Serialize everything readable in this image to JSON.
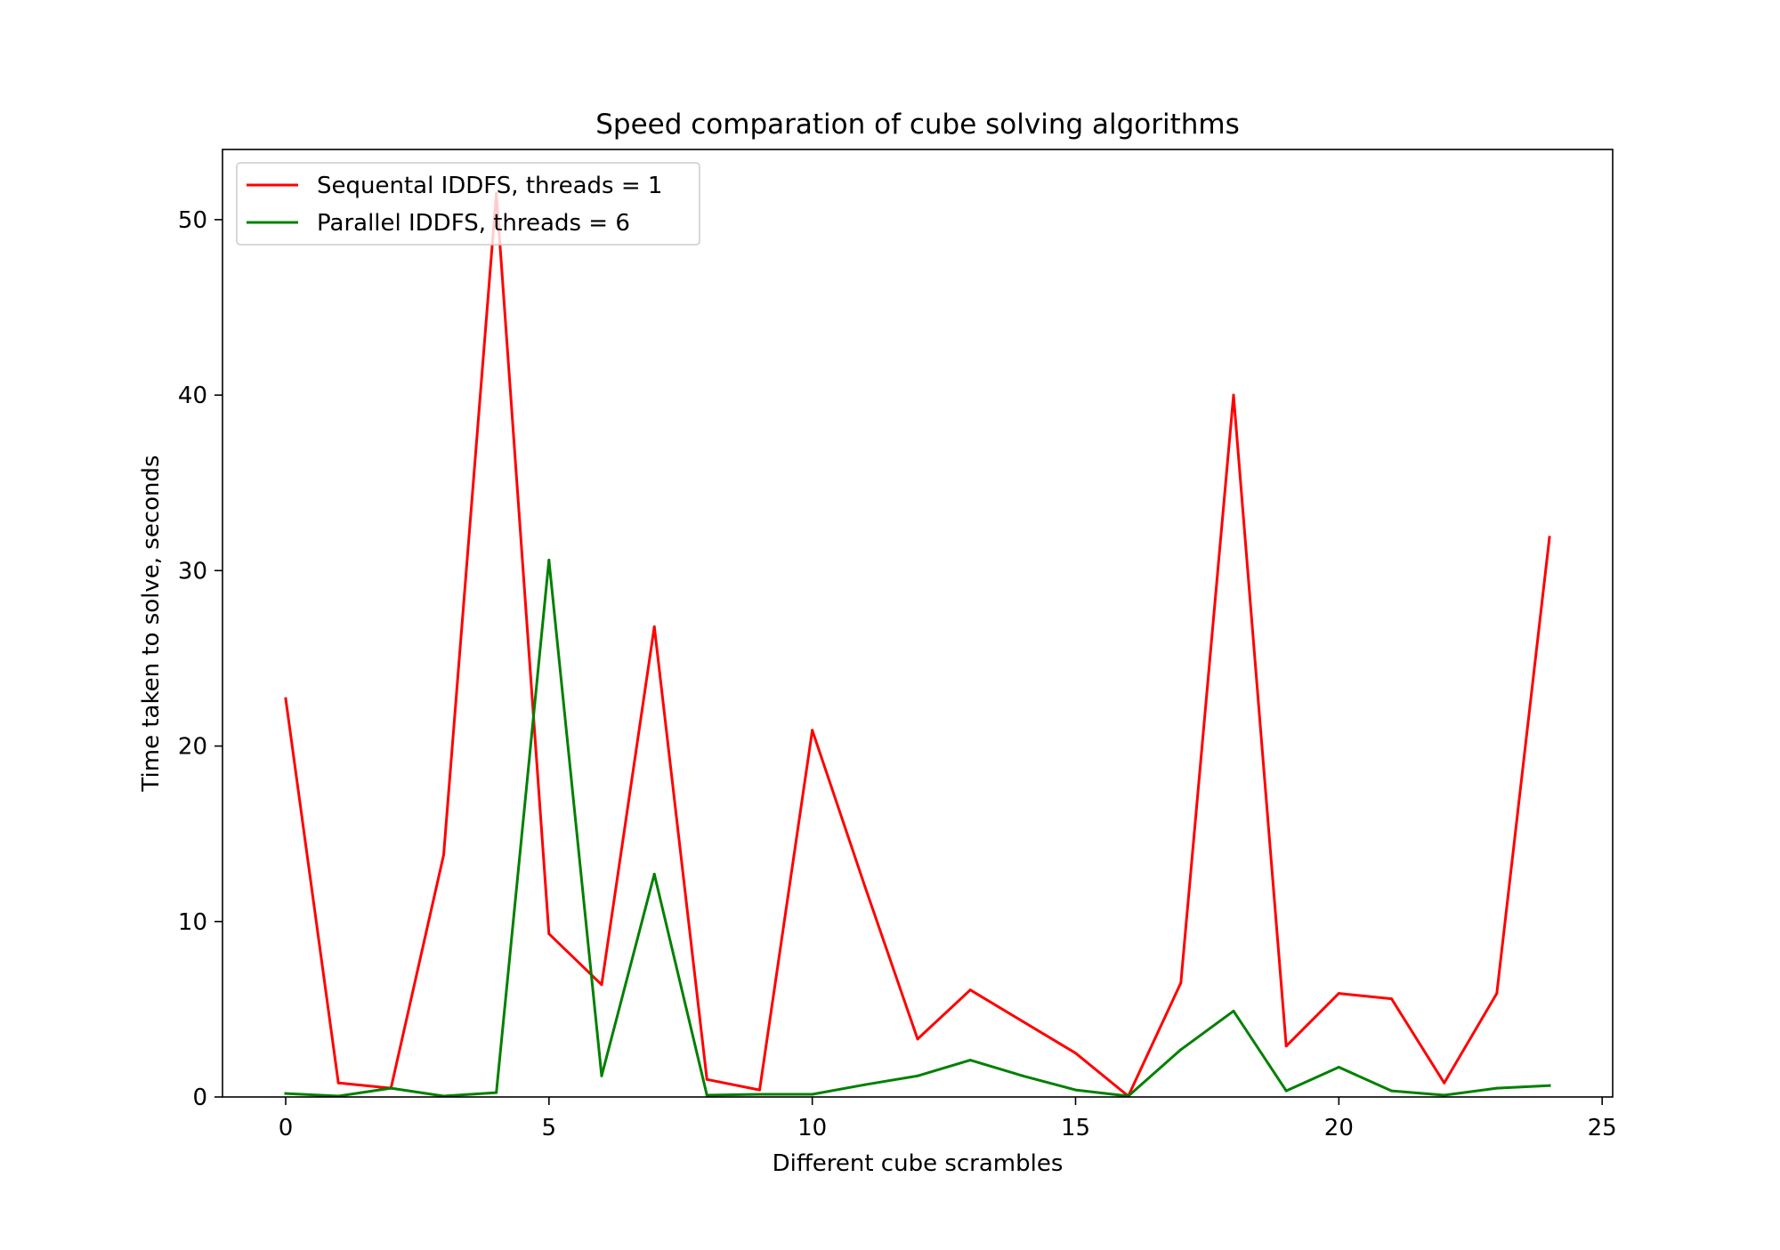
{
  "chart_data": {
    "type": "line",
    "title": "Speed comparation of cube solving algorithms",
    "xlabel": "Different cube scrambles",
    "ylabel": "Time taken to solve, seconds",
    "xlim": [
      -1.2,
      25.2
    ],
    "ylim": [
      0,
      54
    ],
    "xticks": [
      0,
      5,
      10,
      15,
      20,
      25
    ],
    "yticks": [
      0,
      10,
      20,
      30,
      40,
      50
    ],
    "grid": false,
    "legend_position": "top-left",
    "x": [
      0,
      1,
      2,
      3,
      4,
      5,
      6,
      7,
      8,
      9,
      10,
      11,
      12,
      13,
      14,
      15,
      16,
      17,
      18,
      19,
      20,
      21,
      22,
      23,
      24
    ],
    "series": [
      {
        "name": "Sequental IDDFS, threads = 1",
        "color": "#ff0000",
        "values": [
          22.7,
          0.8,
          0.5,
          13.8,
          51.5,
          9.3,
          6.4,
          26.8,
          1.0,
          0.4,
          20.9,
          12.0,
          3.3,
          6.1,
          4.3,
          2.5,
          0.05,
          6.5,
          40.0,
          2.9,
          5.9,
          5.6,
          0.8,
          5.9,
          31.9
        ]
      },
      {
        "name": "Parallel IDDFS, threads = 6",
        "color": "#008000",
        "values": [
          0.2,
          0.05,
          0.5,
          0.05,
          0.25,
          30.6,
          1.2,
          12.7,
          0.1,
          0.15,
          0.15,
          0.7,
          1.2,
          2.1,
          1.2,
          0.4,
          0.05,
          2.7,
          4.9,
          0.35,
          1.7,
          0.35,
          0.1,
          0.5,
          0.65
        ]
      }
    ]
  }
}
